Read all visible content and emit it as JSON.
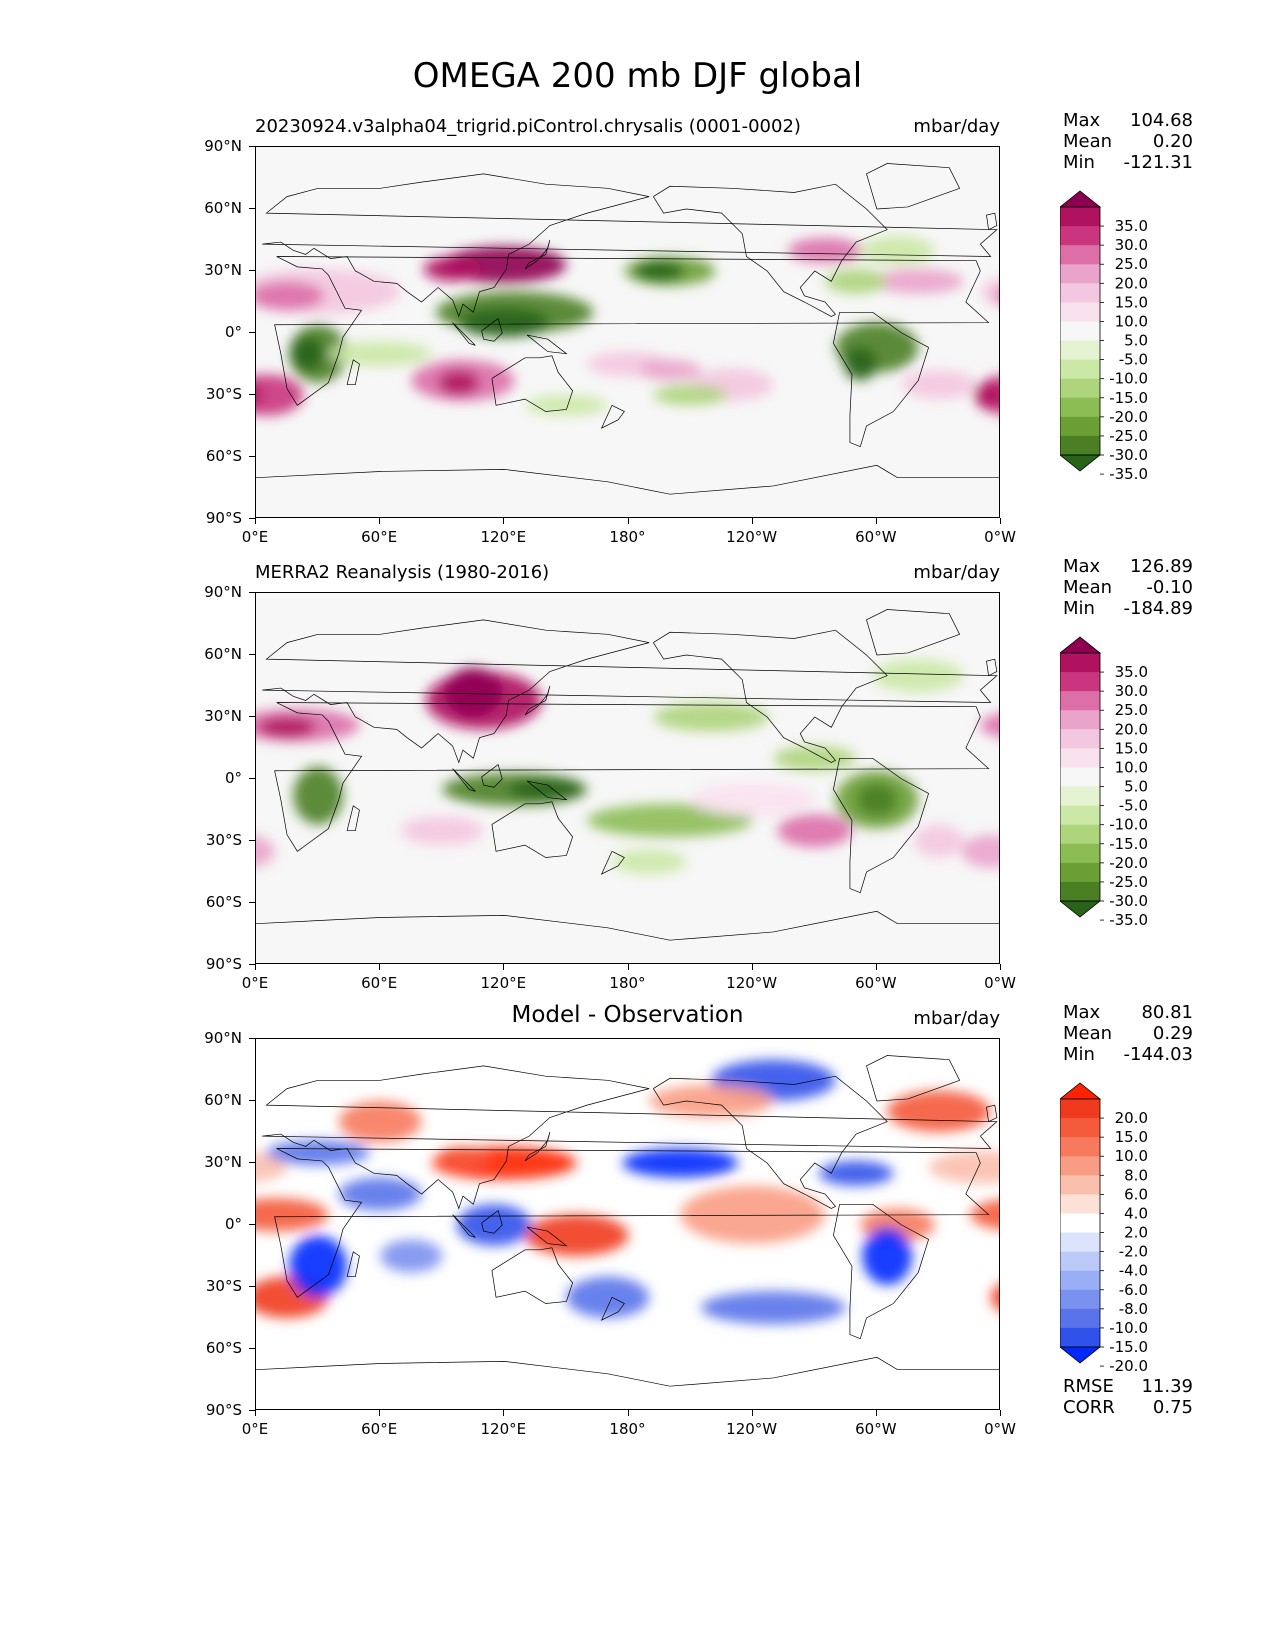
{
  "figure": {
    "title": "OMEGA 200 mb DJF global"
  },
  "axes": {
    "lat_labels": [
      "90°N",
      "60°N",
      "30°N",
      "0°",
      "30°S",
      "60°S",
      "90°S"
    ],
    "lon_labels": [
      "0°E",
      "60°E",
      "120°E",
      "180°",
      "120°W",
      "60°W",
      "0°W"
    ]
  },
  "panels": [
    {
      "id": "model",
      "left_title": "20230924.v3alpha04_trigrid.piControl.chrysalis (0001-0002)",
      "center_title": "",
      "units": "mbar/day",
      "stats": [
        {
          "label": "Max",
          "value": "104.68"
        },
        {
          "label": "Mean",
          "value": "0.20"
        },
        {
          "label": "Min",
          "value": "-121.31"
        }
      ],
      "colorbar": {
        "labels": [
          "35.0",
          "30.0",
          "25.0",
          "20.0",
          "15.0",
          "10.0",
          "5.0",
          "-5.0",
          "-10.0",
          "-15.0",
          "-20.0",
          "-25.0",
          "-30.0",
          "-35.0"
        ],
        "colors": [
          "#8e0152",
          "#b0125f",
          "#c9357e",
          "#dc6ea8",
          "#eaa3cb",
          "#f4c7e0",
          "#f9e1ee",
          "#f7f7f7",
          "#e6f3d2",
          "#cbe8a6",
          "#aed47c",
          "#8cbd55",
          "#6a9f35",
          "#4b7f24",
          "#276419"
        ]
      }
    },
    {
      "id": "obs",
      "left_title": "MERRA2 Reanalysis (1980-2016)",
      "center_title": "",
      "units": "mbar/day",
      "stats": [
        {
          "label": "Max",
          "value": "126.89"
        },
        {
          "label": "Mean",
          "value": "-0.10"
        },
        {
          "label": "Min",
          "value": "-184.89"
        }
      ],
      "colorbar": {
        "labels": [
          "35.0",
          "30.0",
          "25.0",
          "20.0",
          "15.0",
          "10.0",
          "5.0",
          "-5.0",
          "-10.0",
          "-15.0",
          "-20.0",
          "-25.0",
          "-30.0",
          "-35.0"
        ],
        "colors": [
          "#8e0152",
          "#b0125f",
          "#c9357e",
          "#dc6ea8",
          "#eaa3cb",
          "#f4c7e0",
          "#f9e1ee",
          "#f7f7f7",
          "#e6f3d2",
          "#cbe8a6",
          "#aed47c",
          "#8cbd55",
          "#6a9f35",
          "#4b7f24",
          "#276419"
        ]
      }
    },
    {
      "id": "diff",
      "left_title": "",
      "center_title": "Model - Observation",
      "units": "mbar/day",
      "stats": [
        {
          "label": "Max",
          "value": "80.81"
        },
        {
          "label": "Mean",
          "value": "0.29"
        },
        {
          "label": "Min",
          "value": "-144.03"
        }
      ],
      "extra_stats": [
        {
          "label": "RMSE",
          "value": "11.39"
        },
        {
          "label": "CORR",
          "value": "0.75"
        }
      ],
      "colorbar": {
        "labels": [
          "20.0",
          "15.0",
          "10.0",
          "8.0",
          "6.0",
          "4.0",
          "2.0",
          "-2.0",
          "-4.0",
          "-6.0",
          "-8.0",
          "-10.0",
          "-15.0",
          "-20.0"
        ],
        "colors": [
          "#ff2200",
          "#f03a1e",
          "#f45a3c",
          "#f77a5e",
          "#f99c84",
          "#fbbfae",
          "#fde0d6",
          "#ffffff",
          "#dbe3fd",
          "#bccafa",
          "#9aaef5",
          "#7b91f0",
          "#5a73ea",
          "#3152ea",
          "#0028ff"
        ]
      }
    }
  ]
}
